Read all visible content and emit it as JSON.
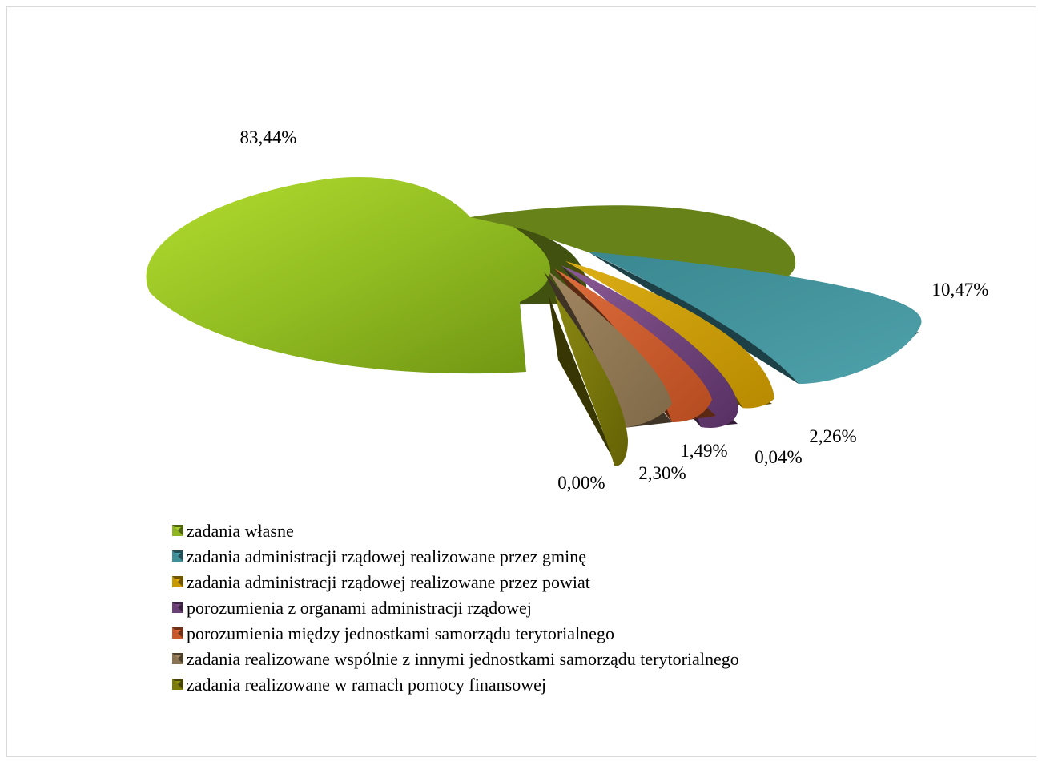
{
  "chart_data": {
    "type": "pie",
    "title": "",
    "categories": [
      "zadania własne",
      "zadania administracji rządowej realizowane przez gminę",
      "zadania administracji rządowej realizowane przez powiat",
      "porozumienia z organami administracji rządowej",
      "porozumienia między jednostkami samorządu terytorialnego",
      "zadania realizowane wspólnie z innymi jednostkami samorządu terytorialnego",
      "zadania realizowane w ramach pomocy finansowej"
    ],
    "values": [
      83.44,
      10.47,
      2.26,
      0.04,
      1.49,
      2.3,
      0.0
    ],
    "data_labels": [
      "83,44%",
      "10,47%",
      "2,26%",
      "0,04%",
      "1,49%",
      "2,30%",
      "0,00%"
    ],
    "colors": [
      "#8fb523",
      "#3f8f99",
      "#c89a00",
      "#6a3f74",
      "#c8582a",
      "#8b7452",
      "#7c7a08"
    ],
    "legend_position": "bottom-left",
    "style": "3d-exploded"
  }
}
